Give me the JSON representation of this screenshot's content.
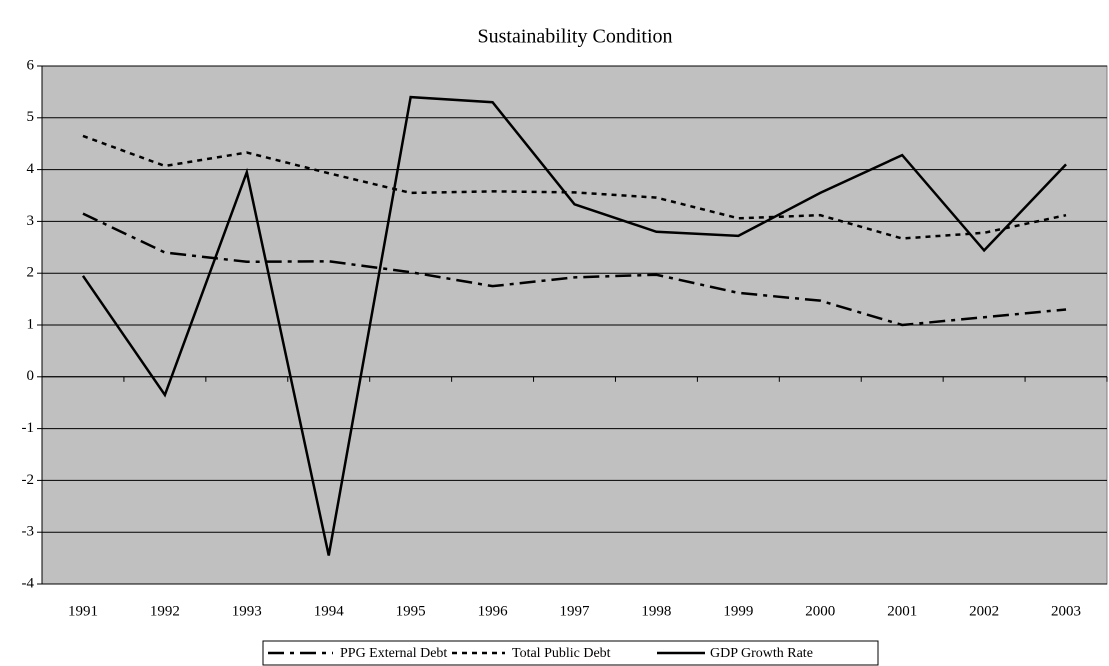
{
  "chart_data": {
    "type": "line",
    "title": "Sustainability Condition",
    "categories": [
      "1991",
      "1992",
      "1993",
      "1994",
      "1995",
      "1996",
      "1997",
      "1998",
      "1999",
      "2000",
      "2001",
      "2002",
      "2003"
    ],
    "series": [
      {
        "name": "PPG External Debt",
        "color": "#000000",
        "line_style": "dash-dot",
        "values": [
          3.15,
          2.4,
          2.22,
          2.23,
          2.02,
          1.75,
          1.92,
          1.97,
          1.62,
          1.47,
          1.0,
          1.15,
          1.3
        ]
      },
      {
        "name": "Total Public Debt",
        "color": "#000000",
        "line_style": "dash",
        "values": [
          4.65,
          4.07,
          4.33,
          3.93,
          3.55,
          3.58,
          3.56,
          3.46,
          3.06,
          3.12,
          2.67,
          2.78,
          3.12
        ]
      },
      {
        "name": "GDP Growth Rate",
        "color": "#000000",
        "line_style": "solid",
        "values": [
          1.95,
          -0.35,
          3.95,
          -3.45,
          5.4,
          5.3,
          3.33,
          2.8,
          2.72,
          3.55,
          4.28,
          2.44,
          4.1
        ]
      }
    ],
    "ylim": [
      -4,
      6
    ],
    "yticks": [
      -4,
      -3,
      -2,
      -1,
      0,
      1,
      2,
      3,
      4,
      5,
      6
    ],
    "grid": true,
    "legend": "bottom",
    "plot_background": "#c0c0c0"
  }
}
